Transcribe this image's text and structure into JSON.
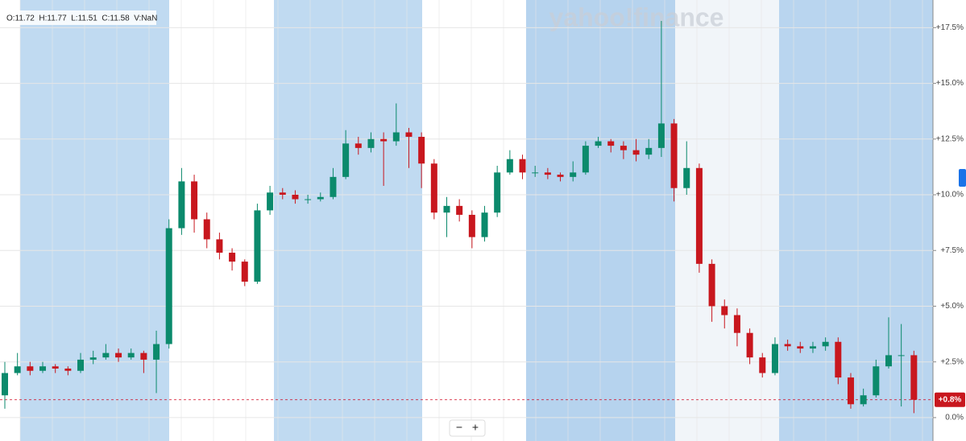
{
  "chart_data": {
    "type": "candlestick",
    "open": [
      1.0,
      2.0,
      2.3,
      2.1,
      2.3,
      2.2,
      2.1,
      2.6,
      2.7,
      2.9,
      2.7,
      2.9,
      2.6,
      3.3,
      8.5,
      10.6,
      8.9,
      8.0,
      7.4,
      7.0,
      6.1,
      9.3,
      10.1,
      10.0,
      9.8,
      9.8,
      9.9,
      10.8,
      12.3,
      12.1,
      12.5,
      12.4,
      12.8,
      12.6,
      11.4,
      9.2,
      9.5,
      9.1,
      8.1,
      9.2,
      11.0,
      11.6,
      11.0,
      11.0,
      10.9,
      10.8,
      11.0,
      12.2,
      12.4,
      12.2,
      12.0,
      11.8,
      12.1,
      13.2,
      10.3,
      11.2,
      6.9,
      5.0,
      4.6,
      3.8,
      2.7,
      2.0,
      3.3,
      3.2,
      3.1,
      3.2,
      3.4,
      1.8,
      0.6,
      1.0,
      2.3,
      2.8,
      2.8
    ],
    "high": [
      2.5,
      2.9,
      2.5,
      2.5,
      2.4,
      2.3,
      2.9,
      3.0,
      3.3,
      3.1,
      3.1,
      3.0,
      3.9,
      8.9,
      11.2,
      10.9,
      9.2,
      8.3,
      7.6,
      7.1,
      9.6,
      10.4,
      10.3,
      10.2,
      10.0,
      10.1,
      11.2,
      12.9,
      12.6,
      12.8,
      12.8,
      14.1,
      13.0,
      12.8,
      11.6,
      9.9,
      9.8,
      9.3,
      9.5,
      11.3,
      12.0,
      11.8,
      11.3,
      11.2,
      11.0,
      11.5,
      12.4,
      12.6,
      12.5,
      12.4,
      12.5,
      12.5,
      17.8,
      13.4,
      12.4,
      11.4,
      7.1,
      5.3,
      4.9,
      4.0,
      2.9,
      3.6,
      3.5,
      3.4,
      3.4,
      3.6,
      3.6,
      2.0,
      1.3,
      2.6,
      4.5,
      4.2,
      3.0
    ],
    "low": [
      0.4,
      1.9,
      1.9,
      2.0,
      2.0,
      1.9,
      2.0,
      2.4,
      2.6,
      2.5,
      2.6,
      2.0,
      1.1,
      3.1,
      8.2,
      8.3,
      7.6,
      7.1,
      6.6,
      5.9,
      6.0,
      9.1,
      9.8,
      9.6,
      9.6,
      9.7,
      9.8,
      10.7,
      11.8,
      11.9,
      10.4,
      12.2,
      11.2,
      10.3,
      8.9,
      8.1,
      8.8,
      7.6,
      7.9,
      9.0,
      10.9,
      10.7,
      10.8,
      10.7,
      10.6,
      10.6,
      10.9,
      12.1,
      11.9,
      11.6,
      11.5,
      11.6,
      11.7,
      9.7,
      10.0,
      6.5,
      4.3,
      4.0,
      3.2,
      2.4,
      1.8,
      1.9,
      3.0,
      2.9,
      2.9,
      3.0,
      1.5,
      0.4,
      0.5,
      0.9,
      2.2,
      0.5,
      0.2
    ],
    "close": [
      2.0,
      2.3,
      2.1,
      2.3,
      2.2,
      2.1,
      2.6,
      2.7,
      2.9,
      2.7,
      2.9,
      2.6,
      3.3,
      8.5,
      10.6,
      8.9,
      8.0,
      7.4,
      7.0,
      6.1,
      9.3,
      10.1,
      10.0,
      9.8,
      9.8,
      9.9,
      10.8,
      12.3,
      12.1,
      12.5,
      12.4,
      12.8,
      12.6,
      11.4,
      9.2,
      9.5,
      9.1,
      8.1,
      9.2,
      11.0,
      11.6,
      11.0,
      11.0,
      10.9,
      10.8,
      11.0,
      12.2,
      12.4,
      12.2,
      12.0,
      11.8,
      12.1,
      13.2,
      10.3,
      11.2,
      6.9,
      5.0,
      4.6,
      3.8,
      2.7,
      2.0,
      3.3,
      3.2,
      3.1,
      3.2,
      3.4,
      1.8,
      0.6,
      1.0,
      2.3,
      2.8,
      2.8,
      0.8
    ],
    "up_color": "#0b8a6c",
    "down_color": "#c8171e",
    "ylim": [
      -1.05,
      18.74
    ],
    "yticks": [
      {
        "value": 0,
        "label": "0.0%"
      },
      {
        "value": 2.5,
        "label": "+2.5%"
      },
      {
        "value": 5,
        "label": "+5.0%"
      },
      {
        "value": 7.5,
        "label": "+7.5%"
      },
      {
        "value": 10,
        "label": "+10.0%"
      },
      {
        "value": 12.5,
        "label": "+12.5%"
      },
      {
        "value": 15,
        "label": "+15.0%"
      },
      {
        "value": 17.5,
        "label": "+17.5%"
      }
    ],
    "grid": true,
    "last_price": {
      "value": 0.8,
      "label": "+0.8%"
    }
  },
  "ui": {
    "ohlc": "O:11.72  H:11.77  L:11.51  C:11.58  V:NaN",
    "watermark": "yahoo!finance",
    "zoom_out": "−",
    "zoom_in": "+"
  }
}
